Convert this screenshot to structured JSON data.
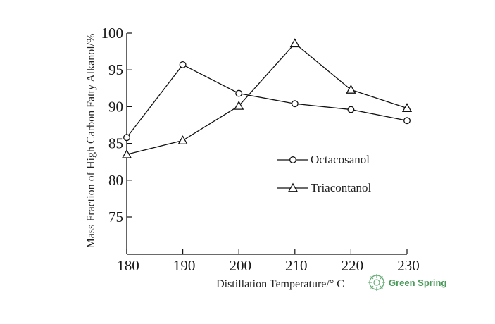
{
  "chart_data": {
    "type": "line",
    "title": "",
    "xlabel": "Distillation Temperature/° C",
    "ylabel": "Mass Fraction of High Carbon Fatty Alkanol/%",
    "x": [
      180,
      190,
      200,
      210,
      220,
      230
    ],
    "x_tick_labels": [
      "180",
      "190",
      "200",
      "210",
      "220",
      "230"
    ],
    "y_tick_labels": [
      "75",
      "80",
      "85",
      "90",
      "95",
      "100"
    ],
    "xlim": [
      180,
      230
    ],
    "ylim": [
      70,
      100
    ],
    "grid": false,
    "legend_position": "center-right",
    "series": [
      {
        "name": "Octacosanol",
        "marker": "circle",
        "values": [
          85.8,
          95.7,
          91.8,
          90.4,
          89.6,
          88.1
        ]
      },
      {
        "name": "Triacontanol",
        "marker": "triangle",
        "values": [
          83.5,
          85.4,
          90.1,
          98.6,
          92.3,
          89.8
        ]
      }
    ]
  },
  "watermark": {
    "text": "Green Spring",
    "color": "#4a9a5a"
  }
}
